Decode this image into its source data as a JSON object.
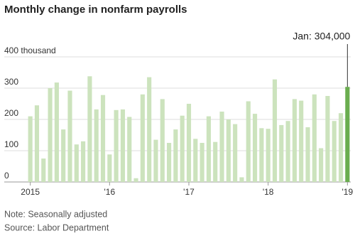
{
  "chart_data": {
    "type": "bar",
    "title": "Monthly change in nonfarm payrolls",
    "categories": [
      "2015",
      null,
      null,
      null,
      null,
      null,
      null,
      null,
      null,
      null,
      null,
      null,
      "'16",
      null,
      null,
      null,
      null,
      null,
      null,
      null,
      null,
      null,
      null,
      null,
      "'17",
      null,
      null,
      null,
      null,
      null,
      null,
      null,
      null,
      null,
      null,
      null,
      "'18",
      null,
      null,
      null,
      null,
      null,
      null,
      null,
      null,
      null,
      null,
      null,
      "'19"
    ],
    "values": [
      210,
      245,
      75,
      300,
      318,
      168,
      292,
      120,
      130,
      338,
      232,
      278,
      88,
      230,
      232,
      208,
      12,
      280,
      335,
      135,
      265,
      125,
      168,
      212,
      250,
      138,
      125,
      210,
      128,
      225,
      200,
      185,
      15,
      258,
      218,
      172,
      170,
      328,
      182,
      195,
      265,
      260,
      175,
      280,
      108,
      275,
      195,
      220,
      304
    ],
    "color": "#cce3bd",
    "ylim": [
      0,
      400
    ],
    "yticks": [
      0,
      100,
      200,
      300,
      {
        "value": 400,
        "label": "400 thousand"
      }
    ],
    "grid": true,
    "annotation": {
      "text": "Jan: 304,000",
      "category_index": 48,
      "color": "#6aad4f"
    },
    "note": "Note: Seasonally adjusted",
    "source": "Source: Labor Department"
  }
}
